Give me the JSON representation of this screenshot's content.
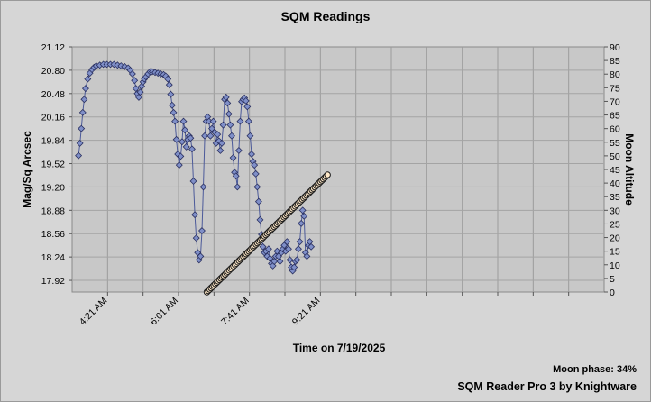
{
  "chart_data": {
    "type": "scatter",
    "title": "SQM Readings",
    "xlabel": "Time on 7/19/2025",
    "ylabel": "Mag/Sq Arcsec",
    "y2label": "Moon Altitude",
    "x_tick_labels": [
      "4:21 AM",
      "6:01 AM",
      "7:41 AM",
      "9:21 AM"
    ],
    "x_tick_minutes": [
      261,
      361,
      461,
      561
    ],
    "xlim_minutes": [
      211,
      961
    ],
    "ylim": [
      17.76,
      21.12
    ],
    "y_ticks": [
      17.92,
      18.24,
      18.56,
      18.88,
      19.2,
      19.52,
      19.84,
      20.16,
      20.48,
      20.8,
      21.12
    ],
    "y2lim": [
      0,
      90
    ],
    "y2_ticks": [
      0,
      5,
      10,
      15,
      20,
      25,
      30,
      35,
      40,
      45,
      50,
      55,
      60,
      65,
      70,
      75,
      80,
      85,
      90
    ],
    "grid": true,
    "series": [
      {
        "axis": "left",
        "color": "#7f8fc8",
        "marker": "diamond",
        "points": [
          [
            220,
            19.63
          ],
          [
            222,
            19.8
          ],
          [
            224,
            20.0
          ],
          [
            226,
            20.22
          ],
          [
            228,
            20.4
          ],
          [
            230,
            20.55
          ],
          [
            233,
            20.68
          ],
          [
            236,
            20.76
          ],
          [
            239,
            20.81
          ],
          [
            242,
            20.84
          ],
          [
            245,
            20.86
          ],
          [
            250,
            20.87
          ],
          [
            255,
            20.88
          ],
          [
            260,
            20.88
          ],
          [
            265,
            20.88
          ],
          [
            270,
            20.88
          ],
          [
            275,
            20.87
          ],
          [
            280,
            20.86
          ],
          [
            285,
            20.85
          ],
          [
            290,
            20.83
          ],
          [
            293,
            20.8
          ],
          [
            296,
            20.75
          ],
          [
            299,
            20.66
          ],
          [
            301,
            20.55
          ],
          [
            303,
            20.48
          ],
          [
            305,
            20.43
          ],
          [
            307,
            20.5
          ],
          [
            309,
            20.58
          ],
          [
            311,
            20.64
          ],
          [
            313,
            20.68
          ],
          [
            315,
            20.71
          ],
          [
            318,
            20.75
          ],
          [
            321,
            20.78
          ],
          [
            324,
            20.78
          ],
          [
            328,
            20.77
          ],
          [
            332,
            20.76
          ],
          [
            336,
            20.75
          ],
          [
            340,
            20.74
          ],
          [
            343,
            20.72
          ],
          [
            346,
            20.68
          ],
          [
            348,
            20.6
          ],
          [
            350,
            20.47
          ],
          [
            352,
            20.32
          ],
          [
            354,
            20.22
          ],
          [
            356,
            20.1
          ],
          [
            358,
            19.85
          ],
          [
            360,
            19.65
          ],
          [
            362,
            19.5
          ],
          [
            364,
            19.62
          ],
          [
            366,
            19.82
          ],
          [
            368,
            20.1
          ],
          [
            370,
            19.98
          ],
          [
            372,
            19.75
          ],
          [
            374,
            19.85
          ],
          [
            376,
            19.9
          ],
          [
            378,
            19.87
          ],
          [
            380,
            19.72
          ],
          [
            382,
            19.28
          ],
          [
            384,
            18.82
          ],
          [
            386,
            18.5
          ],
          [
            388,
            18.3
          ],
          [
            390,
            18.2
          ],
          [
            392,
            18.25
          ],
          [
            394,
            18.6
          ],
          [
            396,
            19.2
          ],
          [
            398,
            19.9
          ],
          [
            400,
            20.1
          ],
          [
            402,
            20.16
          ],
          [
            404,
            20.1
          ],
          [
            406,
            19.9
          ],
          [
            408,
            20.0
          ],
          [
            410,
            20.1
          ],
          [
            412,
            19.95
          ],
          [
            414,
            19.8
          ],
          [
            416,
            19.92
          ],
          [
            418,
            19.83
          ],
          [
            420,
            19.7
          ],
          [
            422,
            19.8
          ],
          [
            424,
            20.05
          ],
          [
            426,
            20.4
          ],
          [
            428,
            20.43
          ],
          [
            430,
            20.35
          ],
          [
            432,
            20.2
          ],
          [
            434,
            20.05
          ],
          [
            436,
            19.9
          ],
          [
            438,
            19.6
          ],
          [
            440,
            19.4
          ],
          [
            442,
            19.35
          ],
          [
            444,
            19.2
          ],
          [
            446,
            19.7
          ],
          [
            448,
            20.1
          ],
          [
            450,
            20.37
          ],
          [
            452,
            20.4
          ],
          [
            454,
            20.42
          ],
          [
            456,
            20.38
          ],
          [
            458,
            20.3
          ],
          [
            460,
            20.1
          ],
          [
            462,
            19.9
          ],
          [
            464,
            19.65
          ],
          [
            466,
            19.55
          ],
          [
            468,
            19.5
          ],
          [
            470,
            19.38
          ],
          [
            472,
            19.2
          ],
          [
            474,
            19.0
          ],
          [
            476,
            18.75
          ],
          [
            478,
            18.55
          ],
          [
            480,
            18.38
          ],
          [
            482,
            18.3
          ],
          [
            484,
            18.32
          ],
          [
            486,
            18.25
          ],
          [
            488,
            18.35
          ],
          [
            490,
            18.22
          ],
          [
            492,
            18.15
          ],
          [
            494,
            18.12
          ],
          [
            496,
            18.18
          ],
          [
            498,
            18.25
          ],
          [
            500,
            18.32
          ],
          [
            502,
            18.25
          ],
          [
            504,
            18.18
          ],
          [
            506,
            18.3
          ],
          [
            508,
            18.35
          ],
          [
            510,
            18.4
          ],
          [
            512,
            18.32
          ],
          [
            514,
            18.45
          ],
          [
            516,
            18.35
          ],
          [
            518,
            18.2
          ],
          [
            520,
            18.1
          ],
          [
            522,
            18.05
          ],
          [
            524,
            18.1
          ],
          [
            526,
            18.18
          ],
          [
            528,
            18.2
          ],
          [
            530,
            18.35
          ],
          [
            532,
            18.45
          ],
          [
            534,
            18.7
          ],
          [
            536,
            18.88
          ],
          [
            538,
            18.8
          ],
          [
            540,
            18.3
          ],
          [
            542,
            18.25
          ],
          [
            544,
            18.4
          ],
          [
            546,
            18.45
          ],
          [
            548,
            18.38
          ]
        ]
      },
      {
        "axis": "right",
        "color": "#ffe8c8",
        "marker": "circle",
        "start_minute": 401,
        "end_minute": 571,
        "start_value": 0,
        "end_value": 43
      }
    ]
  },
  "footer": {
    "moon_phase": "Moon phase: 34%",
    "credit": "SQM Reader Pro 3 by Knightware"
  }
}
